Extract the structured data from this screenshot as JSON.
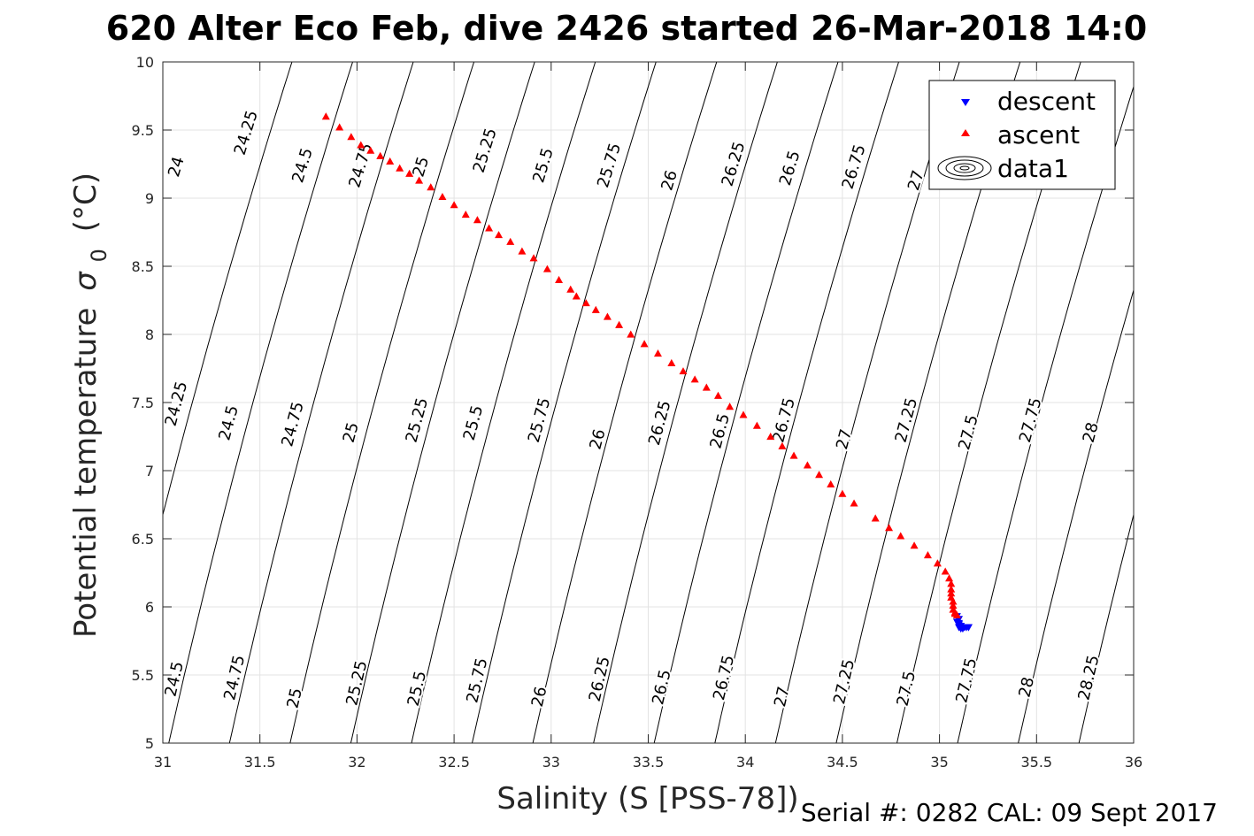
{
  "chart_data": {
    "type": "scatter",
    "title": "620 Alter Eco Feb, dive 2426 started 26-Mar-2018 14:0",
    "xlabel": "Salinity (S [PSS-78])",
    "ylabel": "Potential temperature",
    "ylabel_sigma": "σ",
    "ylabel_sub": "0",
    "ylabel_unit": "(°C)",
    "footer": "Serial #: 0282  CAL: 09 Sept 2017",
    "xlim": [
      31,
      36
    ],
    "ylim": [
      5,
      10
    ],
    "grid": true,
    "x_ticks": [
      "31",
      "31.5",
      "32",
      "32.5",
      "33",
      "33.5",
      "34",
      "34.5",
      "35",
      "35.5",
      "36"
    ],
    "y_ticks": [
      "5",
      "5.5",
      "6",
      "6.5",
      "7",
      "7.5",
      "8",
      "8.5",
      "9",
      "9.5",
      "10"
    ],
    "legend": {
      "position": "top-right",
      "entries": [
        "descent",
        "ascent",
        "data1"
      ]
    },
    "series": [
      {
        "name": "descent",
        "marker": "triangle-down",
        "color": "#0000ff",
        "points": [
          [
            35.09,
            5.93
          ],
          [
            35.1,
            5.91
          ],
          [
            35.09,
            5.89
          ],
          [
            35.1,
            5.88
          ],
          [
            35.1,
            5.87
          ],
          [
            35.11,
            5.86
          ],
          [
            35.1,
            5.85
          ],
          [
            35.11,
            5.84
          ],
          [
            35.12,
            5.84
          ],
          [
            35.13,
            5.85
          ],
          [
            35.14,
            5.85
          ],
          [
            35.15,
            5.85
          ],
          [
            35.12,
            5.85
          ]
        ]
      },
      {
        "name": "ascent",
        "marker": "triangle-up",
        "color": "#ff0000",
        "points": [
          [
            31.84,
            9.6
          ],
          [
            31.91,
            9.52
          ],
          [
            31.97,
            9.45
          ],
          [
            32.02,
            9.39
          ],
          [
            32.07,
            9.35
          ],
          [
            32.12,
            9.31
          ],
          [
            32.17,
            9.27
          ],
          [
            32.22,
            9.22
          ],
          [
            32.27,
            9.18
          ],
          [
            32.32,
            9.13
          ],
          [
            32.38,
            9.08
          ],
          [
            32.44,
            9.01
          ],
          [
            32.5,
            8.95
          ],
          [
            32.56,
            8.88
          ],
          [
            32.62,
            8.84
          ],
          [
            32.68,
            8.78
          ],
          [
            32.73,
            8.73
          ],
          [
            32.79,
            8.68
          ],
          [
            32.85,
            8.61
          ],
          [
            32.91,
            8.56
          ],
          [
            32.98,
            8.48
          ],
          [
            33.04,
            8.4
          ],
          [
            33.1,
            8.33
          ],
          [
            33.13,
            8.28
          ],
          [
            33.18,
            8.23
          ],
          [
            33.23,
            8.18
          ],
          [
            33.29,
            8.13
          ],
          [
            33.35,
            8.07
          ],
          [
            33.41,
            8.0
          ],
          [
            33.48,
            7.93
          ],
          [
            33.55,
            7.86
          ],
          [
            33.62,
            7.79
          ],
          [
            33.68,
            7.73
          ],
          [
            33.74,
            7.67
          ],
          [
            33.8,
            7.61
          ],
          [
            33.86,
            7.55
          ],
          [
            33.92,
            7.47
          ],
          [
            33.99,
            7.41
          ],
          [
            34.06,
            7.33
          ],
          [
            34.13,
            7.25
          ],
          [
            34.19,
            7.18
          ],
          [
            34.25,
            7.11
          ],
          [
            34.32,
            7.04
          ],
          [
            34.38,
            6.97
          ],
          [
            34.44,
            6.9
          ],
          [
            34.5,
            6.83
          ],
          [
            34.56,
            6.76
          ],
          [
            34.67,
            6.65
          ],
          [
            34.74,
            6.58
          ],
          [
            34.8,
            6.52
          ],
          [
            34.87,
            6.45
          ],
          [
            34.94,
            6.38
          ],
          [
            34.99,
            6.32
          ],
          [
            35.03,
            6.26
          ],
          [
            35.05,
            6.21
          ],
          [
            35.06,
            6.17
          ],
          [
            35.06,
            6.13
          ],
          [
            35.06,
            6.1
          ],
          [
            35.06,
            6.07
          ],
          [
            35.07,
            6.04
          ],
          [
            35.07,
            6.01
          ],
          [
            35.07,
            5.98
          ],
          [
            35.08,
            5.96
          ],
          [
            35.08,
            5.95
          ],
          [
            35.09,
            5.94
          ]
        ]
      }
    ],
    "contours": [
      {
        "level": "24"
      },
      {
        "level": "24.25"
      },
      {
        "level": "24.5"
      },
      {
        "level": "24.75"
      },
      {
        "level": "25"
      },
      {
        "level": "25.25"
      },
      {
        "level": "25.5"
      },
      {
        "level": "25.75"
      },
      {
        "level": "26"
      },
      {
        "level": "26.25"
      },
      {
        "level": "26.5"
      },
      {
        "level": "26.75"
      },
      {
        "level": "27"
      },
      {
        "level": "27.25"
      },
      {
        "level": "27.5"
      },
      {
        "level": "27.75"
      },
      {
        "level": "28"
      },
      {
        "level": "28.25"
      }
    ],
    "contour_labels": [
      {
        "level": "24",
        "s": 31.07,
        "t": 9.23
      },
      {
        "level": "24.25",
        "s": 31.43,
        "t": 9.48
      },
      {
        "level": "24.5",
        "s": 31.72,
        "t": 9.24
      },
      {
        "level": "24.75",
        "s": 32.02,
        "t": 9.24
      },
      {
        "level": "25",
        "s": 32.33,
        "t": 9.23
      },
      {
        "level": "25.25",
        "s": 32.66,
        "t": 9.35
      },
      {
        "level": "25.5",
        "s": 32.96,
        "t": 9.24
      },
      {
        "level": "25.75",
        "s": 33.3,
        "t": 9.24
      },
      {
        "level": "26",
        "s": 33.61,
        "t": 9.13
      },
      {
        "level": "26.25",
        "s": 33.94,
        "t": 9.25
      },
      {
        "level": "26.5",
        "s": 34.23,
        "t": 9.22
      },
      {
        "level": "26.75",
        "s": 34.56,
        "t": 9.23
      },
      {
        "level": "27",
        "s": 34.88,
        "t": 9.13
      },
      {
        "level": "24.25",
        "s": 31.07,
        "t": 7.49
      },
      {
        "level": "24.5",
        "s": 31.34,
        "t": 7.35
      },
      {
        "level": "24.75",
        "s": 31.67,
        "t": 7.34
      },
      {
        "level": "25",
        "s": 31.97,
        "t": 7.28
      },
      {
        "level": "25.25",
        "s": 32.31,
        "t": 7.37
      },
      {
        "level": "25.5",
        "s": 32.6,
        "t": 7.35
      },
      {
        "level": "25.75",
        "s": 32.94,
        "t": 7.37
      },
      {
        "level": "26",
        "s": 33.24,
        "t": 7.23
      },
      {
        "level": "26.25",
        "s": 33.56,
        "t": 7.35
      },
      {
        "level": "26.5",
        "s": 33.87,
        "t": 7.29
      },
      {
        "level": "26.75",
        "s": 34.2,
        "t": 7.37
      },
      {
        "level": "27",
        "s": 34.51,
        "t": 7.23
      },
      {
        "level": "27.25",
        "s": 34.83,
        "t": 7.37
      },
      {
        "level": "27.5",
        "s": 35.15,
        "t": 7.28
      },
      {
        "level": "27.75",
        "s": 35.47,
        "t": 7.37
      },
      {
        "level": "28",
        "s": 35.78,
        "t": 7.28
      },
      {
        "level": "24.5",
        "s": 31.06,
        "t": 5.47
      },
      {
        "level": "24.75",
        "s": 31.37,
        "t": 5.48
      },
      {
        "level": "25",
        "s": 31.68,
        "t": 5.33
      },
      {
        "level": "25.25",
        "s": 32.0,
        "t": 5.44
      },
      {
        "level": "25.5",
        "s": 32.31,
        "t": 5.4
      },
      {
        "level": "25.75",
        "s": 32.62,
        "t": 5.46
      },
      {
        "level": "26",
        "s": 32.94,
        "t": 5.34
      },
      {
        "level": "26.25",
        "s": 33.25,
        "t": 5.47
      },
      {
        "level": "26.5",
        "s": 33.57,
        "t": 5.41
      },
      {
        "level": "26.75",
        "s": 33.89,
        "t": 5.48
      },
      {
        "level": "27",
        "s": 34.19,
        "t": 5.34
      },
      {
        "level": "27.25",
        "s": 34.51,
        "t": 5.45
      },
      {
        "level": "27.5",
        "s": 34.83,
        "t": 5.4
      },
      {
        "level": "27.75",
        "s": 35.14,
        "t": 5.46
      },
      {
        "level": "28",
        "s": 35.45,
        "t": 5.41
      },
      {
        "level": "28.25",
        "s": 35.77,
        "t": 5.48
      }
    ]
  }
}
